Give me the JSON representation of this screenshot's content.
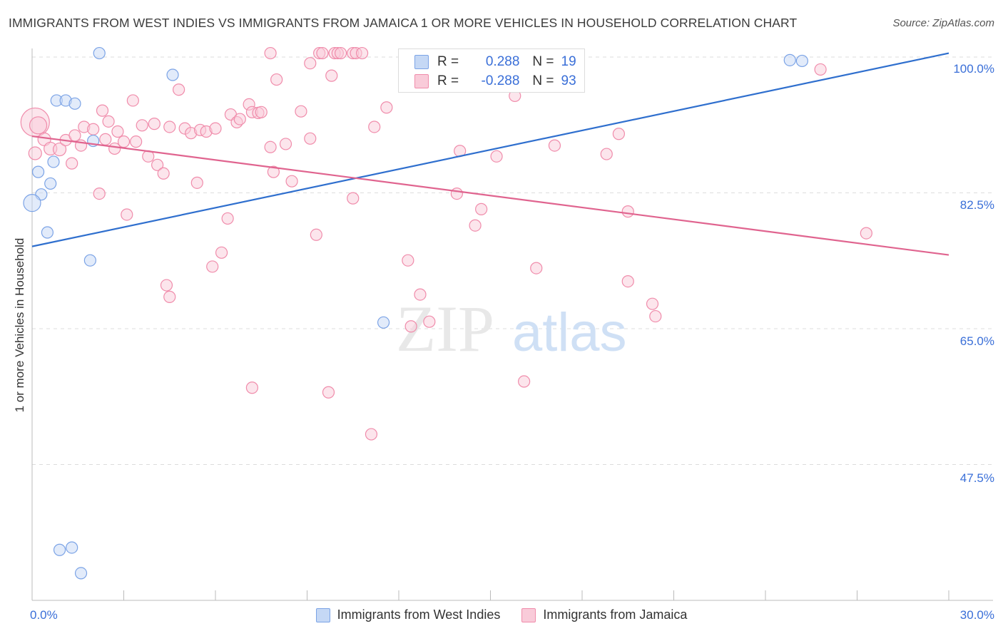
{
  "title": "IMMIGRANTS FROM WEST INDIES VS IMMIGRANTS FROM JAMAICA 1 OR MORE VEHICLES IN HOUSEHOLD CORRELATION CHART",
  "source": "Source: ZipAtlas.com",
  "watermark": {
    "zip": "ZIP",
    "atlas": "atlas"
  },
  "legend_top": {
    "r_label": "R =",
    "n_label": "N =",
    "rows": [
      {
        "r": "0.288",
        "n": "19"
      },
      {
        "r": "-0.288",
        "n": "93"
      }
    ]
  },
  "chart_data": {
    "type": "scatter",
    "xlabel": "",
    "ylabel": "1 or more Vehicles in Household",
    "xlim": [
      0,
      30
    ],
    "ylim": [
      30,
      100
    ],
    "x_tick_labels": [
      "0.0%",
      "30.0%"
    ],
    "y_tick_labels": [
      "100.0%",
      "82.5%",
      "65.0%",
      "47.5%"
    ],
    "y_ticks": [
      100,
      82.5,
      65,
      47.5
    ],
    "grid": true,
    "colors": {
      "west_indies": "#7ba3e6",
      "jamaica": "#f08cab",
      "west_indies_line": "#2f6fce",
      "jamaica_line": "#e0648f"
    },
    "series": [
      {
        "name": "Immigrants from West Indies",
        "trend": {
          "x": [
            0,
            30
          ],
          "y": [
            75.6,
            100.5
          ]
        },
        "points": [
          [
            2.2,
            100.5,
            8
          ],
          [
            0.8,
            94.4,
            8
          ],
          [
            1.1,
            94.4,
            8
          ],
          [
            1.4,
            94.0,
            8
          ],
          [
            4.6,
            97.7,
            8
          ],
          [
            0.2,
            85.2,
            8
          ],
          [
            0.7,
            86.5,
            8
          ],
          [
            0.6,
            83.7,
            8
          ],
          [
            0.3,
            82.3,
            8
          ],
          [
            2.0,
            89.2,
            8
          ],
          [
            0.0,
            81.2,
            12
          ],
          [
            0.5,
            77.4,
            8
          ],
          [
            1.9,
            73.8,
            8
          ],
          [
            11.5,
            65.8,
            8
          ],
          [
            24.8,
            99.6,
            8
          ],
          [
            25.2,
            99.5,
            8
          ],
          [
            0.9,
            36.5,
            8
          ],
          [
            1.3,
            36.8,
            8
          ],
          [
            1.6,
            33.5,
            8
          ]
        ]
      },
      {
        "name": "Immigrants from Jamaica",
        "trend": {
          "x": [
            0,
            30
          ],
          "y": [
            89.8,
            74.5
          ]
        },
        "points": [
          [
            0.1,
            91.6,
            20
          ],
          [
            0.2,
            91.2,
            12
          ],
          [
            0.4,
            89.4,
            9
          ],
          [
            0.6,
            88.2,
            9
          ],
          [
            0.9,
            88.1,
            9
          ],
          [
            1.1,
            89.3,
            8
          ],
          [
            1.4,
            89.9,
            8
          ],
          [
            1.3,
            86.3,
            8
          ],
          [
            1.6,
            88.6,
            8
          ],
          [
            1.7,
            91.0,
            8
          ],
          [
            2.0,
            90.7,
            8
          ],
          [
            2.2,
            82.4,
            8
          ],
          [
            2.3,
            93.1,
            8
          ],
          [
            2.4,
            89.4,
            8
          ],
          [
            2.5,
            91.7,
            8
          ],
          [
            2.7,
            88.2,
            8
          ],
          [
            2.8,
            90.4,
            8
          ],
          [
            3.0,
            89.1,
            8
          ],
          [
            3.1,
            79.7,
            8
          ],
          [
            3.3,
            94.4,
            8
          ],
          [
            3.4,
            89.1,
            8
          ],
          [
            3.6,
            91.2,
            8
          ],
          [
            3.8,
            87.2,
            8
          ],
          [
            4.0,
            91.4,
            8
          ],
          [
            4.1,
            86.1,
            8
          ],
          [
            4.3,
            85.0,
            8
          ],
          [
            4.5,
            91.0,
            8
          ],
          [
            4.8,
            95.8,
            8
          ],
          [
            5.0,
            90.8,
            8
          ],
          [
            5.2,
            90.2,
            8
          ],
          [
            5.4,
            83.8,
            8
          ],
          [
            5.5,
            90.6,
            8
          ],
          [
            5.7,
            90.4,
            8
          ],
          [
            5.9,
            73.0,
            8
          ],
          [
            6.0,
            90.8,
            8
          ],
          [
            6.2,
            74.8,
            8
          ],
          [
            6.4,
            79.2,
            8
          ],
          [
            6.5,
            92.6,
            8
          ],
          [
            6.7,
            91.6,
            8
          ],
          [
            6.8,
            92.0,
            8
          ],
          [
            7.1,
            93.9,
            8
          ],
          [
            7.2,
            92.9,
            8
          ],
          [
            7.4,
            92.8,
            8
          ],
          [
            7.5,
            92.9,
            8
          ],
          [
            7.8,
            88.4,
            8
          ],
          [
            4.4,
            70.6,
            8
          ],
          [
            4.5,
            69.1,
            8
          ],
          [
            7.2,
            57.4,
            8
          ],
          [
            7.8,
            100.5,
            8
          ],
          [
            7.9,
            85.2,
            8
          ],
          [
            8.0,
            97.1,
            8
          ],
          [
            8.3,
            88.8,
            8
          ],
          [
            8.5,
            84.0,
            8
          ],
          [
            8.8,
            93.0,
            8
          ],
          [
            9.1,
            99.2,
            8
          ],
          [
            9.1,
            89.5,
            8
          ],
          [
            9.3,
            77.1,
            8
          ],
          [
            9.4,
            100.5,
            8
          ],
          [
            9.5,
            100.5,
            8
          ],
          [
            9.7,
            56.8,
            8
          ],
          [
            9.8,
            97.6,
            8
          ],
          [
            9.9,
            100.5,
            8
          ],
          [
            10.0,
            100.5,
            8
          ],
          [
            10.1,
            100.5,
            8
          ],
          [
            10.5,
            100.5,
            8
          ],
          [
            10.6,
            100.5,
            8
          ],
          [
            10.8,
            100.5,
            8
          ],
          [
            10.5,
            81.8,
            8
          ],
          [
            11.1,
            51.4,
            8
          ],
          [
            11.2,
            91.0,
            8
          ],
          [
            11.6,
            93.5,
            8
          ],
          [
            12.3,
            73.8,
            8
          ],
          [
            12.4,
            65.3,
            8
          ],
          [
            12.7,
            69.4,
            8
          ],
          [
            13.0,
            65.9,
            8
          ],
          [
            13.9,
            82.4,
            8
          ],
          [
            14.0,
            87.9,
            8
          ],
          [
            14.5,
            78.3,
            8
          ],
          [
            14.7,
            80.4,
            8
          ],
          [
            15.2,
            87.2,
            8
          ],
          [
            15.8,
            95.0,
            8
          ],
          [
            16.1,
            58.2,
            8
          ],
          [
            16.5,
            72.8,
            8
          ],
          [
            17.1,
            88.6,
            8
          ],
          [
            18.8,
            87.5,
            8
          ],
          [
            19.2,
            90.1,
            8
          ],
          [
            19.5,
            71.1,
            8
          ],
          [
            19.5,
            80.1,
            8
          ],
          [
            20.3,
            68.2,
            8
          ],
          [
            20.4,
            66.6,
            8
          ],
          [
            25.8,
            98.4,
            8
          ],
          [
            27.3,
            77.3,
            8
          ],
          [
            0.1,
            87.6,
            9
          ]
        ]
      }
    ]
  }
}
